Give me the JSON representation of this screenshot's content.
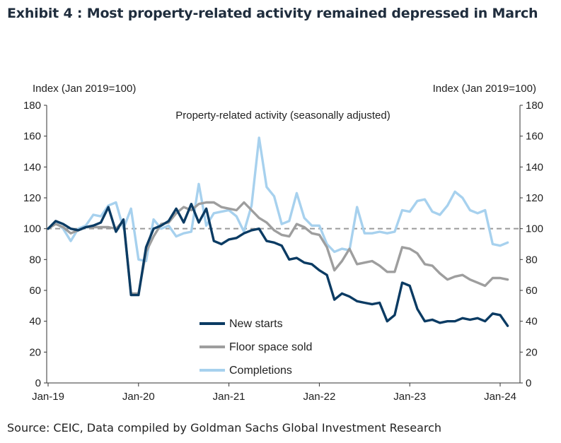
{
  "title": "Exhibit 4 : Most property-related activity remained depressed in March",
  "source": "Source: CEIC, Data compiled by Goldman Sachs Global Investment Research",
  "colors": {
    "new_starts": "#0b3b63",
    "floor_space": "#9e9e9e",
    "completions": "#a7d1ee",
    "baseline": "#9a9a9a"
  },
  "chart_data": {
    "type": "line",
    "title": "Property-related activity  (seasonally adjusted)",
    "ylabel_left": "Index (Jan 2019=100)",
    "ylabel_right": "Index (Jan 2019=100)",
    "ylim": [
      0,
      180
    ],
    "yticks": [
      "0",
      "20",
      "40",
      "60",
      "80",
      "100",
      "120",
      "140",
      "160",
      "180"
    ],
    "xticks": [
      {
        "label": "Jan-19",
        "index": 0
      },
      {
        "label": "Jan-20",
        "index": 12
      },
      {
        "label": "Jan-21",
        "index": 24
      },
      {
        "label": "Jan-22",
        "index": 36
      },
      {
        "label": "Jan-23",
        "index": 48
      },
      {
        "label": "Jan-24",
        "index": 60
      }
    ],
    "x_start": "2019-01",
    "reference_line": 100,
    "legend_position": "bottom-center",
    "series": [
      {
        "name": "New starts",
        "color_key": "new_starts",
        "values": [
          100,
          105,
          103,
          100,
          99,
          101,
          102,
          104,
          114,
          98,
          106,
          57,
          57,
          88,
          100,
          102,
          105,
          113,
          104,
          116,
          104,
          113,
          92,
          90,
          93,
          94,
          97,
          99,
          100,
          92,
          91,
          89,
          80,
          81,
          78,
          77,
          73,
          70,
          54,
          58,
          56,
          53,
          52,
          51,
          52,
          40,
          44,
          65,
          63,
          48,
          40,
          41,
          39,
          40,
          40,
          42,
          41,
          42,
          40,
          45,
          44,
          37
        ]
      },
      {
        "name": "Floor space sold",
        "color_key": "floor_space",
        "values": [
          100,
          103,
          101,
          97,
          99,
          101,
          101,
          101,
          101,
          100,
          105,
          58,
          58,
          85,
          95,
          103,
          104,
          110,
          114,
          112,
          116,
          117,
          117,
          114,
          113,
          112,
          117,
          112,
          107,
          104,
          99,
          96,
          95,
          103,
          101,
          97,
          96,
          88,
          73,
          79,
          87,
          77,
          78,
          79,
          76,
          72,
          72,
          88,
          87,
          84,
          77,
          76,
          71,
          67,
          69,
          70,
          67,
          65,
          63,
          68,
          68,
          67
        ]
      },
      {
        "name": "Completions",
        "color_key": "completions",
        "values": [
          100,
          104,
          100,
          92,
          100,
          102,
          109,
          108,
          115,
          117,
          100,
          113,
          80,
          79,
          106,
          100,
          102,
          95,
          97,
          98,
          129,
          102,
          110,
          111,
          112,
          108,
          98,
          115,
          159,
          127,
          121,
          103,
          105,
          123,
          107,
          102,
          102,
          90,
          85,
          87,
          86,
          114,
          97,
          97,
          98,
          97,
          98,
          112,
          111,
          118,
          119,
          111,
          109,
          115,
          124,
          120,
          112,
          110,
          112,
          90,
          89,
          91
        ]
      }
    ]
  }
}
